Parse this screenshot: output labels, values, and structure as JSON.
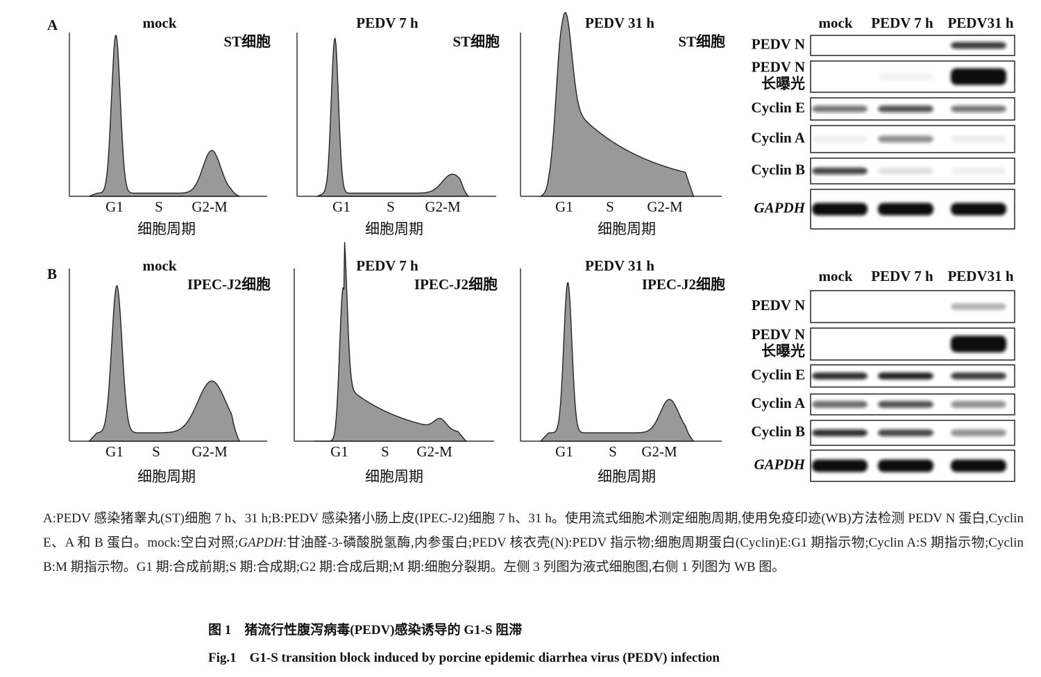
{
  "panels": [
    {
      "label": "A",
      "histograms": [
        {
          "title": "mock",
          "cell": "ST细胞",
          "ticks": [
            "G1",
            "S",
            "G2-M"
          ],
          "xlabel": "细胞周期"
        },
        {
          "title": "PEDV 7 h",
          "cell": "ST细胞",
          "ticks": [
            "G1",
            "S",
            "G2-M"
          ],
          "xlabel": "细胞周期"
        },
        {
          "title": "PEDV 31 h",
          "cell": "ST细胞",
          "ticks": [
            "G1",
            "S",
            "G2-M"
          ],
          "xlabel": "细胞周期"
        }
      ],
      "blot": {
        "lanes": [
          "mock",
          "PEDV 7 h",
          "PEDV31 h"
        ],
        "rows": [
          [
            "PEDV N"
          ],
          [
            "PEDV N",
            "长曝光"
          ],
          [
            "Cyclin E"
          ],
          [
            "Cyclin A"
          ],
          [
            "Cyclin B"
          ],
          [
            "GAPDH"
          ]
        ]
      }
    },
    {
      "label": "B",
      "histograms": [
        {
          "title": "mock",
          "cell": "IPEC-J2细胞",
          "ticks": [
            "G1",
            "S",
            "G2-M"
          ],
          "xlabel": "细胞周期"
        },
        {
          "title": "PEDV 7 h",
          "cell": "IPEC-J2细胞",
          "ticks": [
            "G1",
            "S",
            "G2-M"
          ],
          "xlabel": "细胞周期"
        },
        {
          "title": "PEDV 31 h",
          "cell": "IPEC-J2细胞",
          "ticks": [
            "G1",
            "S",
            "G2-M"
          ],
          "xlabel": "细胞周期"
        }
      ],
      "blot": {
        "lanes": [
          "mock",
          "PEDV 7 h",
          "PEDV31 h"
        ],
        "rows": [
          [
            "PEDV N"
          ],
          [
            "PEDV N",
            "长曝光"
          ],
          [
            "Cyclin E"
          ],
          [
            "Cyclin A"
          ],
          [
            "Cyclin B"
          ],
          [
            "GAPDH"
          ]
        ]
      }
    }
  ],
  "caption": [
    "A:PEDV 感染猪睾丸(ST)细胞 7 h、31 h;B:PEDV 感染猪小肠上皮(IPEC-J2)细胞 7 h、31 h。使用流式细胞术测定细胞周期,使用免疫印迹(WB)方法检测 PEDV N 蛋白,Cyclin E、A 和 B 蛋白。mock:空白对照;",
    "GAPDH",
    ":甘油醛-3-磷酸脱氢酶,内参蛋白;PEDV 核衣壳(N):PEDV 指示物;细胞周期蛋白(Cyclin)E:G1 期指示物;Cyclin A:S 期指示物;Cyclin B:M 期指示物。G1 期:合成前期;S 期:合成期;G2 期:合成后期;M 期:细胞分裂期。左侧 3 列图为液式细胞图,右侧 1 列图为 WB 图。"
  ],
  "figure_title_cn": "图 1　猪流行性腹泻病毒(PEDV)感染诱导的 G1-S 阻滞",
  "figure_title_en": "Fig.1　G1-S transition block induced by porcine epidemic diarrhea virus (PEDV) infection"
}
